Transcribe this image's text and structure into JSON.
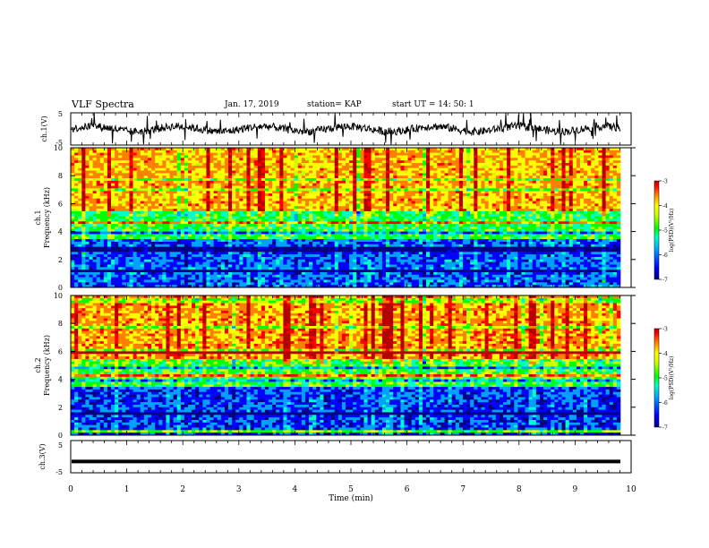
{
  "header": {
    "title": "VLF Spectra",
    "date": "Jan. 17, 2019",
    "station": "station= KAP",
    "start": "start  UT =   14: 50: 1"
  },
  "colors": {
    "colormap": [
      "#000080",
      "#0000ff",
      "#00a0ff",
      "#00ffc8",
      "#00ff00",
      "#c8ff00",
      "#ffff00",
      "#ff8000",
      "#ff0000",
      "#b40000"
    ],
    "trace": "#000000"
  },
  "chart_data": [
    {
      "type": "line",
      "ylabel": "ch.1(V)",
      "ylim": [
        -5,
        5
      ],
      "yticks": [
        "5",
        "-5"
      ],
      "xlim": [
        0,
        10
      ],
      "series": [
        {
          "description": "noisy baseline fluctuating around 0 V",
          "mean": 0,
          "approx_range": [
            -2,
            3
          ]
        }
      ]
    },
    {
      "type": "heatmap",
      "ylabel_line1": "ch.1",
      "ylabel_line2": "Frequency (kHz)",
      "ylim": [
        0,
        10
      ],
      "yticks": [
        "0",
        "2",
        "4",
        "6",
        "8",
        "10"
      ],
      "xlim": [
        0,
        10
      ],
      "colorbar": {
        "label": "log(PSD)(V²/Hz)",
        "range": [
          -7,
          -3
        ],
        "ticks": [
          "-3",
          "-4",
          "-5",
          "-6",
          "-7"
        ]
      },
      "bands": [
        {
          "freq_range_khz": [
            0,
            3.5
          ],
          "approx_log_psd": -6.2
        },
        {
          "freq_range_khz": [
            3.5,
            5.5
          ],
          "approx_log_psd": -5.3
        },
        {
          "freq_range_khz": [
            5.5,
            10
          ],
          "approx_log_psd": -4.2
        }
      ]
    },
    {
      "type": "heatmap",
      "ylabel_line1": "ch.2",
      "ylabel_line2": "Frequency (kHz)",
      "ylim": [
        0,
        10
      ],
      "yticks": [
        "0",
        "2",
        "4",
        "6",
        "8",
        "10"
      ],
      "xlim": [
        0,
        10
      ],
      "colorbar": {
        "label": "log(PSD)(V²/Hz)",
        "range": [
          -7,
          -3
        ],
        "ticks": [
          "-3",
          "-4",
          "-5",
          "-6",
          "-7"
        ]
      },
      "bands": [
        {
          "freq_range_khz": [
            0,
            3.5
          ],
          "approx_log_psd": -6.3
        },
        {
          "freq_range_khz": [
            3.5,
            5.5
          ],
          "approx_log_psd": -5.2
        },
        {
          "freq_range_khz": [
            5.5,
            10
          ],
          "approx_log_psd": -4.1
        }
      ]
    },
    {
      "type": "line",
      "ylabel": "ch.3(V)",
      "ylim": [
        -5,
        5
      ],
      "yticks": [
        "5",
        "-5"
      ],
      "xlim": [
        0,
        10
      ],
      "xlabel": "Time (min)",
      "xticks": [
        "0",
        "1",
        "2",
        "3",
        "4",
        "5",
        "6",
        "7",
        "8",
        "9",
        "10"
      ],
      "series": [
        {
          "description": "constant level",
          "value": -1.5
        }
      ]
    }
  ]
}
